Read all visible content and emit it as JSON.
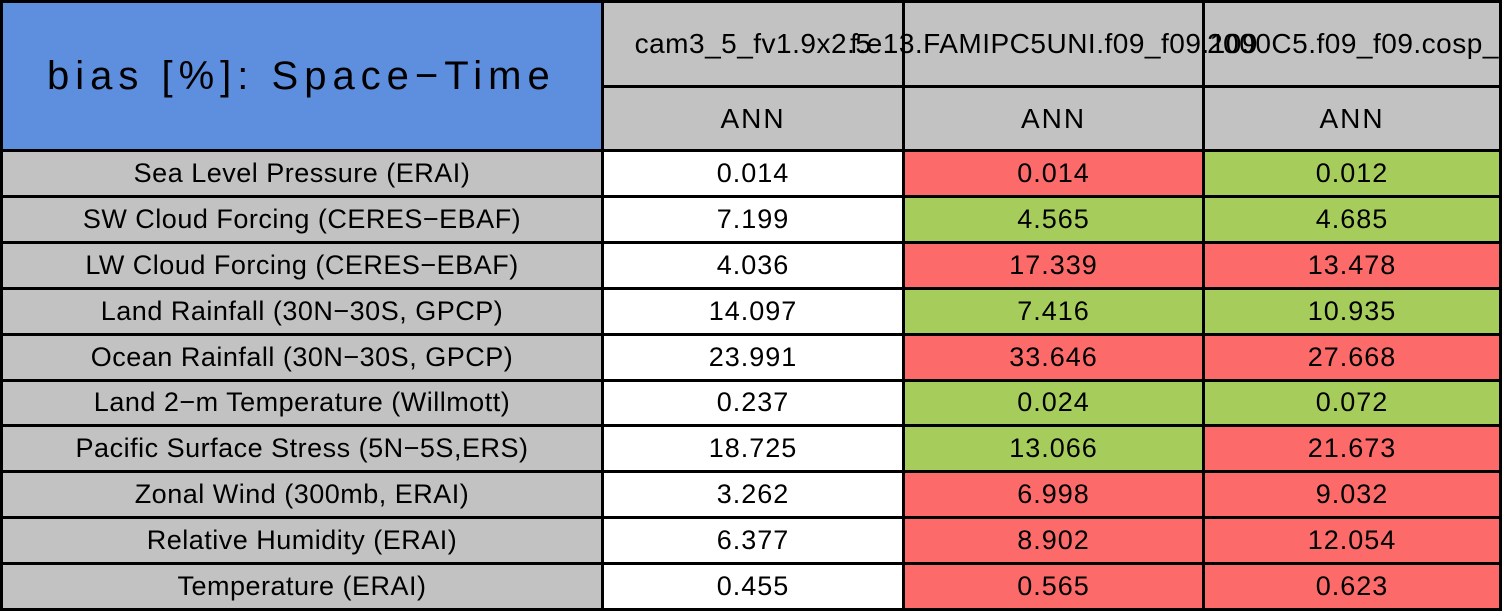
{
  "title": "bias [%]: Space−Time",
  "palette": {
    "white": "#ffffff",
    "gray": "#c2c2c2",
    "blue": "#5e8fdf",
    "red": "#fc6a6a",
    "green": "#a6cd5b",
    "border": "#000000"
  },
  "columns": [
    {
      "model": "cam3_5_fv1.9x2.5",
      "season": "ANN"
    },
    {
      "model": "f.e13.FAMIPC5UNI.f09_f09.109",
      "season": "ANN"
    },
    {
      "model": "2000C5.f09_f09.cosp_",
      "season": "ANN"
    }
  ],
  "rows": [
    {
      "label": "Sea Level Pressure (ERAI)",
      "values": [
        "0.014",
        "0.014",
        "0.012"
      ],
      "cell_colors": [
        "white",
        "red",
        "green"
      ]
    },
    {
      "label": "SW Cloud Forcing (CERES−EBAF)",
      "values": [
        "7.199",
        "4.565",
        "4.685"
      ],
      "cell_colors": [
        "white",
        "green",
        "green"
      ]
    },
    {
      "label": "LW Cloud Forcing (CERES−EBAF)",
      "values": [
        "4.036",
        "17.339",
        "13.478"
      ],
      "cell_colors": [
        "white",
        "red",
        "red"
      ]
    },
    {
      "label": "Land Rainfall (30N−30S, GPCP)",
      "values": [
        "14.097",
        "7.416",
        "10.935"
      ],
      "cell_colors": [
        "white",
        "green",
        "green"
      ]
    },
    {
      "label": "Ocean Rainfall (30N−30S, GPCP)",
      "values": [
        "23.991",
        "33.646",
        "27.668"
      ],
      "cell_colors": [
        "white",
        "red",
        "red"
      ]
    },
    {
      "label": "Land 2−m Temperature (Willmott)",
      "values": [
        "0.237",
        "0.024",
        "0.072"
      ],
      "cell_colors": [
        "white",
        "green",
        "green"
      ]
    },
    {
      "label": "Pacific Surface Stress (5N−5S,ERS)",
      "values": [
        "18.725",
        "13.066",
        "21.673"
      ],
      "cell_colors": [
        "white",
        "green",
        "red"
      ]
    },
    {
      "label": "Zonal Wind (300mb, ERAI)",
      "values": [
        "3.262",
        "6.998",
        "9.032"
      ],
      "cell_colors": [
        "white",
        "red",
        "red"
      ]
    },
    {
      "label": "Relative Humidity (ERAI)",
      "values": [
        "6.377",
        "8.902",
        "12.054"
      ],
      "cell_colors": [
        "white",
        "red",
        "red"
      ]
    },
    {
      "label": "Temperature (ERAI)",
      "values": [
        "0.455",
        "0.565",
        "0.623"
      ],
      "cell_colors": [
        "white",
        "red",
        "red"
      ]
    }
  ],
  "chart_data": {
    "type": "table",
    "title": "bias [%]: Space−Time",
    "column_headers": [
      "cam3_5_fv1.9x2.5",
      "f.e13.FAMIPC5UNI.f09_f09.109",
      "2000C5.f09_f09.cosp_"
    ],
    "season_row": [
      "ANN",
      "ANN",
      "ANN"
    ],
    "row_headers": [
      "Sea Level Pressure (ERAI)",
      "SW Cloud Forcing (CERES−EBAF)",
      "LW Cloud Forcing (CERES−EBAF)",
      "Land Rainfall (30N−30S, GPCP)",
      "Ocean Rainfall (30N−30S, GPCP)",
      "Land 2−m Temperature (Willmott)",
      "Pacific Surface Stress (5N−5S,ERS)",
      "Zonal Wind (300mb, ERAI)",
      "Relative Humidity (ERAI)",
      "Temperature (ERAI)"
    ],
    "values": [
      [
        0.014,
        0.014,
        0.012
      ],
      [
        7.199,
        4.565,
        4.685
      ],
      [
        4.036,
        17.339,
        13.478
      ],
      [
        14.097,
        7.416,
        10.935
      ],
      [
        23.991,
        33.646,
        27.668
      ],
      [
        0.237,
        0.024,
        0.072
      ],
      [
        18.725,
        13.066,
        21.673
      ],
      [
        3.262,
        6.998,
        9.032
      ],
      [
        6.377,
        8.902,
        12.054
      ],
      [
        0.455,
        0.565,
        0.623
      ]
    ],
    "cell_status": [
      [
        "none",
        "worse",
        "better"
      ],
      [
        "none",
        "better",
        "better"
      ],
      [
        "none",
        "worse",
        "worse"
      ],
      [
        "none",
        "better",
        "better"
      ],
      [
        "none",
        "worse",
        "worse"
      ],
      [
        "none",
        "better",
        "better"
      ],
      [
        "none",
        "better",
        "worse"
      ],
      [
        "none",
        "worse",
        "worse"
      ],
      [
        "none",
        "worse",
        "worse"
      ],
      [
        "none",
        "worse",
        "worse"
      ]
    ],
    "legend_position": "none",
    "grid": true
  }
}
